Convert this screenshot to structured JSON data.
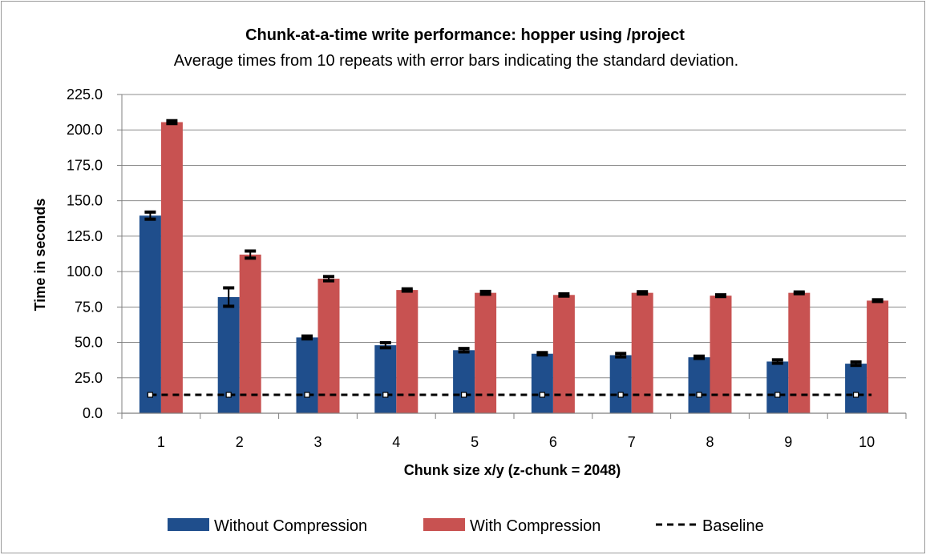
{
  "chart_data": {
    "type": "bar",
    "title": "Chunk-at-a-time write performance: hopper using /project",
    "subtitle": "Average times from 10 repeats with error bars indicating the standard deviation.",
    "xlabel": "Chunk size x/y (z-chunk = 2048)",
    "ylabel": "Time in seconds",
    "ylim": [
      0,
      225
    ],
    "yticks": [
      "0.0",
      "25.0",
      "50.0",
      "75.0",
      "100.0",
      "125.0",
      "150.0",
      "175.0",
      "200.0",
      "225.0"
    ],
    "grid": true,
    "legend_position": "bottom",
    "categories": [
      "1",
      "2",
      "3",
      "4",
      "5",
      "6",
      "7",
      "8",
      "9",
      "10"
    ],
    "series": [
      {
        "name": "Without Compression",
        "kind": "bar",
        "color": "#1f4e8c",
        "values": [
          139.5,
          82,
          53.5,
          48,
          44.5,
          42,
          41,
          39.5,
          36.5,
          35
        ],
        "errors": [
          2.5,
          6.5,
          1.0,
          1.8,
          1.2,
          0.8,
          1.2,
          0.8,
          1.2,
          1.2
        ]
      },
      {
        "name": "With Compression",
        "kind": "bar",
        "color": "#c85251",
        "values": [
          205.5,
          112,
          95,
          87,
          85,
          83.5,
          85,
          83,
          85,
          79.5
        ],
        "errors": [
          1.0,
          2.5,
          1.5,
          0.8,
          1.0,
          0.8,
          0.8,
          0.6,
          0.6,
          0.6
        ]
      },
      {
        "name": "Baseline",
        "kind": "line",
        "style": "dashed",
        "color": "#000000",
        "values": [
          13,
          13,
          13,
          13,
          13,
          13,
          13,
          13,
          13,
          13
        ]
      }
    ]
  }
}
